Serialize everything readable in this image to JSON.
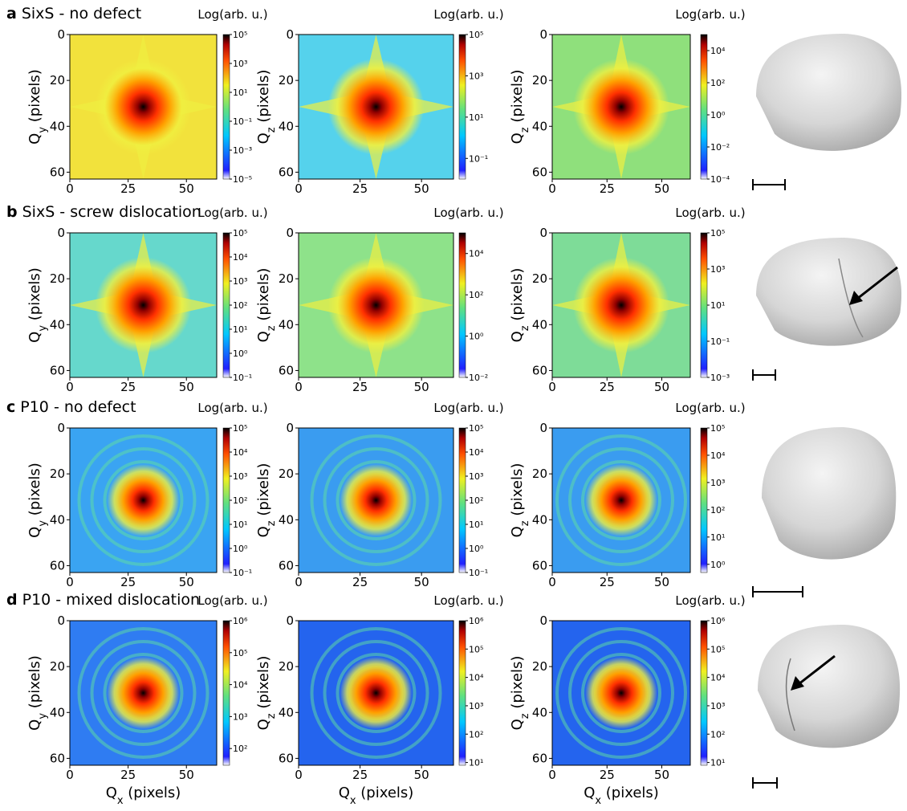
{
  "rows": [
    {
      "letter": "a",
      "title": "SixS - no defect"
    },
    {
      "letter": "b",
      "title": "SixS - screw dislocation"
    },
    {
      "letter": "c",
      "title": "P10 - no defect"
    },
    {
      "letter": "d",
      "title": "P10 - mixed dislocation"
    }
  ],
  "chart_data": [
    {
      "type": "heatmap",
      "ylabel": "Qy (pixels)",
      "xlim": [
        0,
        63
      ],
      "ylim": [
        63,
        0
      ],
      "xticks": [
        0,
        25,
        50
      ],
      "yticks": [
        0,
        20,
        40,
        60
      ],
      "colorbar_label": "Log(arb. u.)",
      "colorbar_log": true,
      "colorbar_lim": [
        1e-05,
        100000
      ],
      "colorbar_ticks": [
        {
          "value": 100000,
          "label": "10⁵"
        },
        {
          "value": 1000,
          "label": "10³"
        },
        {
          "value": 10,
          "label": "10¹"
        },
        {
          "value": 0.1,
          "label": "10⁻¹"
        },
        {
          "value": 0.001,
          "label": "10⁻³"
        },
        {
          "value": 1e-05,
          "label": "10⁻⁵"
        }
      ]
    },
    {
      "type": "heatmap",
      "ylabel": "Qz (pixels)",
      "xlim": [
        0,
        63
      ],
      "ylim": [
        63,
        0
      ],
      "xticks": [
        0,
        25,
        50
      ],
      "yticks": [
        0,
        20,
        40,
        60
      ],
      "colorbar_label": "Log(arb. u.)",
      "colorbar_log": true,
      "colorbar_lim": [
        0.01,
        100000
      ],
      "colorbar_ticks": [
        {
          "value": 100000,
          "label": "10⁵"
        },
        {
          "value": 1000,
          "label": "10³"
        },
        {
          "value": 10,
          "label": "10¹"
        },
        {
          "value": 0.1,
          "label": "10⁻¹"
        }
      ]
    },
    {
      "type": "heatmap",
      "ylabel": "Qz (pixels)",
      "xlim": [
        0,
        63
      ],
      "ylim": [
        63,
        0
      ],
      "xticks": [
        0,
        25,
        50
      ],
      "yticks": [
        0,
        20,
        40,
        60
      ],
      "colorbar_label": "Log(arb. u.)",
      "colorbar_log": true,
      "colorbar_lim": [
        0.0001,
        100000
      ],
      "colorbar_ticks": [
        {
          "value": 10000,
          "label": "10⁴"
        },
        {
          "value": 100,
          "label": "10²"
        },
        {
          "value": 1,
          "label": "10⁰"
        },
        {
          "value": 0.01,
          "label": "10⁻²"
        },
        {
          "value": 0.0001,
          "label": "10⁻⁴"
        }
      ]
    },
    {
      "type": "heatmap",
      "ylabel": "Qy (pixels)",
      "xlim": [
        0,
        63
      ],
      "ylim": [
        63,
        0
      ],
      "xticks": [
        0,
        25,
        50
      ],
      "yticks": [
        0,
        20,
        40,
        60
      ],
      "colorbar_label": "Log(arb. u.)",
      "colorbar_log": true,
      "colorbar_lim": [
        0.1,
        100000
      ],
      "colorbar_ticks": [
        {
          "value": 100000,
          "label": "10⁵"
        },
        {
          "value": 10000,
          "label": "10⁴"
        },
        {
          "value": 1000,
          "label": "10³"
        },
        {
          "value": 100,
          "label": "10²"
        },
        {
          "value": 10,
          "label": "10¹"
        },
        {
          "value": 1,
          "label": "10⁰"
        },
        {
          "value": 0.1,
          "label": "10⁻¹"
        }
      ]
    },
    {
      "type": "heatmap",
      "ylabel": "Qz (pixels)",
      "xlim": [
        0,
        63
      ],
      "ylim": [
        63,
        0
      ],
      "xticks": [
        0,
        25,
        50
      ],
      "yticks": [
        0,
        20,
        40,
        60
      ],
      "colorbar_label": "Log(arb. u.)",
      "colorbar_log": true,
      "colorbar_lim": [
        0.01,
        100000
      ],
      "colorbar_ticks": [
        {
          "value": 10000,
          "label": "10⁴"
        },
        {
          "value": 100,
          "label": "10²"
        },
        {
          "value": 1,
          "label": "10⁰"
        },
        {
          "value": 0.01,
          "label": "10⁻²"
        }
      ]
    },
    {
      "type": "heatmap",
      "ylabel": "Qz (pixels)",
      "xlim": [
        0,
        63
      ],
      "ylim": [
        63,
        0
      ],
      "xticks": [
        0,
        25,
        50
      ],
      "yticks": [
        0,
        20,
        40,
        60
      ],
      "colorbar_label": "Log(arb. u.)",
      "colorbar_log": true,
      "colorbar_lim": [
        0.001,
        100000
      ],
      "colorbar_ticks": [
        {
          "value": 100000,
          "label": "10⁵"
        },
        {
          "value": 1000,
          "label": "10³"
        },
        {
          "value": 10,
          "label": "10¹"
        },
        {
          "value": 0.1,
          "label": "10⁻¹"
        },
        {
          "value": 0.001,
          "label": "10⁻³"
        }
      ]
    },
    {
      "type": "heatmap",
      "ylabel": "Qy (pixels)",
      "xlim": [
        0,
        63
      ],
      "ylim": [
        63,
        0
      ],
      "xticks": [
        0,
        25,
        50
      ],
      "yticks": [
        0,
        20,
        40,
        60
      ],
      "colorbar_label": "Log(arb. u.)",
      "colorbar_log": true,
      "colorbar_lim": [
        0.1,
        100000
      ],
      "colorbar_ticks": [
        {
          "value": 100000,
          "label": "10⁵"
        },
        {
          "value": 10000,
          "label": "10⁴"
        },
        {
          "value": 1000,
          "label": "10³"
        },
        {
          "value": 100,
          "label": "10²"
        },
        {
          "value": 10,
          "label": "10¹"
        },
        {
          "value": 1,
          "label": "10⁰"
        },
        {
          "value": 0.1,
          "label": "10⁻¹"
        }
      ]
    },
    {
      "type": "heatmap",
      "ylabel": "Qz (pixels)",
      "xlim": [
        0,
        63
      ],
      "ylim": [
        63,
        0
      ],
      "xticks": [
        0,
        25,
        50
      ],
      "yticks": [
        0,
        20,
        40,
        60
      ],
      "colorbar_label": "Log(arb. u.)",
      "colorbar_log": true,
      "colorbar_lim": [
        0.1,
        100000
      ],
      "colorbar_ticks": [
        {
          "value": 100000,
          "label": "10⁵"
        },
        {
          "value": 10000,
          "label": "10⁴"
        },
        {
          "value": 1000,
          "label": "10³"
        },
        {
          "value": 100,
          "label": "10²"
        },
        {
          "value": 10,
          "label": "10¹"
        },
        {
          "value": 1,
          "label": "10⁰"
        },
        {
          "value": 0.1,
          "label": "10⁻¹"
        }
      ]
    },
    {
      "type": "heatmap",
      "ylabel": "Qz (pixels)",
      "xlim": [
        0,
        63
      ],
      "ylim": [
        63,
        0
      ],
      "xticks": [
        0,
        25,
        50
      ],
      "yticks": [
        0,
        20,
        40,
        60
      ],
      "colorbar_label": "Log(arb. u.)",
      "colorbar_log": true,
      "colorbar_lim": [
        0.5,
        100000
      ],
      "colorbar_ticks": [
        {
          "value": 100000,
          "label": "10⁵"
        },
        {
          "value": 10000,
          "label": "10⁴"
        },
        {
          "value": 1000,
          "label": "10³"
        },
        {
          "value": 100,
          "label": "10²"
        },
        {
          "value": 10,
          "label": "10¹"
        },
        {
          "value": 1,
          "label": "10⁰"
        }
      ]
    },
    {
      "type": "heatmap",
      "ylabel": "Qy (pixels)",
      "xlabel": "Qx (pixels)",
      "xlim": [
        0,
        63
      ],
      "ylim": [
        63,
        0
      ],
      "xticks": [
        0,
        25,
        50
      ],
      "yticks": [
        0,
        20,
        40,
        60
      ],
      "colorbar_label": "Log(arb. u.)",
      "colorbar_log": true,
      "colorbar_lim": [
        30,
        1000000
      ],
      "colorbar_ticks": [
        {
          "value": 1000000,
          "label": "10⁶"
        },
        {
          "value": 100000,
          "label": "10⁵"
        },
        {
          "value": 10000,
          "label": "10⁴"
        },
        {
          "value": 1000,
          "label": "10³"
        },
        {
          "value": 100,
          "label": "10²"
        }
      ]
    },
    {
      "type": "heatmap",
      "ylabel": "Qz (pixels)",
      "xlabel": "Qx (pixels)",
      "xlim": [
        0,
        63
      ],
      "ylim": [
        63,
        0
      ],
      "xticks": [
        0,
        25,
        50
      ],
      "yticks": [
        0,
        20,
        40,
        60
      ],
      "colorbar_label": "Log(arb. u.)",
      "colorbar_log": true,
      "colorbar_lim": [
        8,
        1000000
      ],
      "colorbar_ticks": [
        {
          "value": 1000000,
          "label": "10⁶"
        },
        {
          "value": 100000,
          "label": "10⁵"
        },
        {
          "value": 10000,
          "label": "10⁴"
        },
        {
          "value": 1000,
          "label": "10³"
        },
        {
          "value": 100,
          "label": "10²"
        },
        {
          "value": 10,
          "label": "10¹"
        }
      ]
    },
    {
      "type": "heatmap",
      "ylabel": "Qz (pixels)",
      "xlabel": "Qx (pixels)",
      "xlim": [
        0,
        63
      ],
      "ylim": [
        63,
        0
      ],
      "xticks": [
        0,
        25,
        50
      ],
      "yticks": [
        0,
        20,
        40,
        60
      ],
      "colorbar_label": "Log(arb. u.)",
      "colorbar_log": true,
      "colorbar_lim": [
        8,
        1000000
      ],
      "colorbar_ticks": [
        {
          "value": 1000000,
          "label": "10⁶"
        },
        {
          "value": 100000,
          "label": "10⁵"
        },
        {
          "value": 10000,
          "label": "10⁴"
        },
        {
          "value": 1000,
          "label": "10³"
        },
        {
          "value": 100,
          "label": "10²"
        },
        {
          "value": 10,
          "label": "10¹"
        }
      ]
    }
  ]
}
